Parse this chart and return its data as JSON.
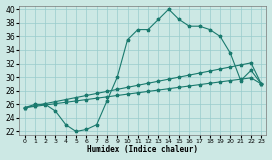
{
  "xlabel": "Humidex (Indice chaleur)",
  "background_color": "#cce8e4",
  "grid_color": "#99cccc",
  "line_color": "#1a7a6e",
  "xlim": [
    -0.5,
    23.5
  ],
  "ylim": [
    21.5,
    40.5
  ],
  "xticks": [
    0,
    1,
    2,
    3,
    4,
    5,
    6,
    7,
    8,
    9,
    10,
    11,
    12,
    13,
    14,
    15,
    16,
    17,
    18,
    19,
    20,
    21,
    22,
    23
  ],
  "yticks": [
    22,
    24,
    26,
    28,
    30,
    32,
    34,
    36,
    38,
    40
  ],
  "line1_x": [
    0,
    1,
    2,
    3,
    4,
    5,
    6,
    7,
    8,
    9,
    10,
    11,
    12,
    13,
    14,
    15,
    16,
    17,
    18,
    19,
    20,
    21,
    22,
    23
  ],
  "line1_y": [
    25.5,
    26,
    26,
    25,
    23,
    22,
    22.3,
    23,
    26.5,
    30,
    35.5,
    37,
    37,
    38.5,
    40,
    38.5,
    37.5,
    37.5,
    37,
    36,
    33.5,
    29.5,
    31,
    29
  ],
  "line2_x": [
    0,
    1,
    2,
    3,
    4,
    5,
    6,
    7,
    8,
    9,
    10,
    11,
    12,
    13,
    14,
    15,
    16,
    17,
    18,
    19,
    20,
    21,
    22,
    23
  ],
  "line2_y": [
    25.5,
    25.8,
    26.1,
    26.4,
    26.7,
    27.0,
    27.3,
    27.6,
    27.9,
    28.2,
    28.5,
    28.8,
    29.1,
    29.4,
    29.7,
    30.0,
    30.3,
    30.6,
    30.9,
    31.2,
    31.5,
    31.8,
    32.1,
    29.0
  ],
  "line3_x": [
    0,
    1,
    2,
    3,
    4,
    5,
    6,
    7,
    8,
    9,
    10,
    11,
    12,
    13,
    14,
    15,
    16,
    17,
    18,
    19,
    20,
    21,
    22,
    23
  ],
  "line3_y": [
    25.5,
    25.7,
    25.9,
    26.1,
    26.3,
    26.5,
    26.7,
    26.9,
    27.1,
    27.3,
    27.5,
    27.7,
    27.9,
    28.1,
    28.3,
    28.5,
    28.7,
    28.9,
    29.1,
    29.3,
    29.5,
    29.7,
    29.9,
    29.0
  ]
}
